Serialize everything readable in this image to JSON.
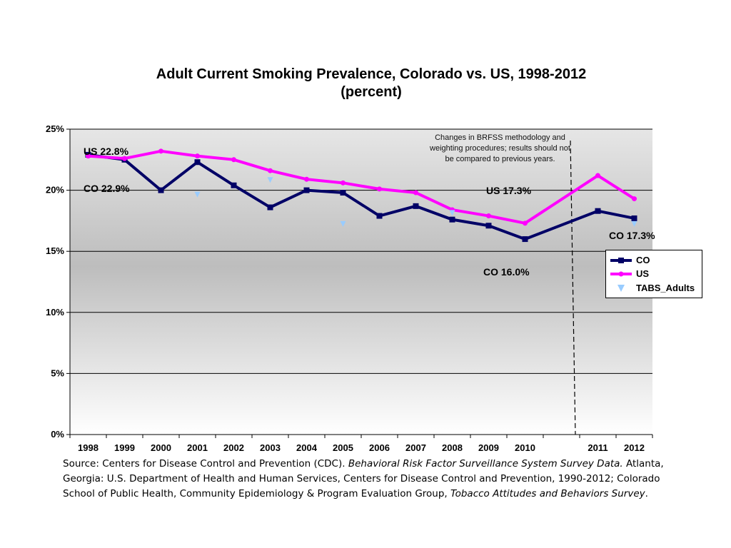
{
  "chart_data": {
    "type": "line",
    "title_line1": "Adult Current Smoking Prevalence, Colorado vs. US, 1998-2012",
    "title_line2": "(percent)",
    "categories": [
      "1998",
      "1999",
      "2000",
      "2001",
      "2002",
      "2003",
      "2004",
      "2005",
      "2006",
      "2007",
      "2008",
      "2009",
      "2010",
      "",
      "2011",
      "2012"
    ],
    "ylim": [
      0,
      25
    ],
    "yticks": [
      "0%",
      "5%",
      "10%",
      "15%",
      "20%",
      "25%"
    ],
    "grid": true,
    "legend_position": "right",
    "series": [
      {
        "name": "CO",
        "color": "#000066",
        "marker": "square",
        "values": [
          22.9,
          22.5,
          20.0,
          22.3,
          20.4,
          18.6,
          20.0,
          19.8,
          17.9,
          18.7,
          17.6,
          17.1,
          16.0,
          null,
          18.3,
          17.7
        ]
      },
      {
        "name": "US",
        "color": "#ff00ff",
        "marker": "star",
        "values": [
          22.8,
          22.6,
          23.2,
          22.8,
          22.5,
          21.6,
          20.9,
          20.6,
          20.1,
          19.8,
          18.4,
          17.9,
          17.3,
          null,
          21.2,
          19.3
        ]
      },
      {
        "name": "TABS_Adults",
        "color": "#99ccff",
        "marker": "triangle-down",
        "values": [
          null,
          null,
          null,
          19.7,
          null,
          20.9,
          null,
          17.3,
          null,
          null,
          18.2,
          null,
          null,
          null,
          null,
          17.3
        ]
      }
    ],
    "annotations": {
      "us_start": "US 22.8%",
      "co_start": "CO 22.9%",
      "us_2010": "US 17.3%",
      "co_2010": "CO 16.0%",
      "co_2012": "CO  17.3%",
      "methodology_note": "Changes in BRFSS methodology and weighting procedures; results should not be compared to previous years."
    }
  },
  "source": {
    "prefix": "Source:  Centers for Disease Control and Prevention (CDC). ",
    "italic1": "Behavioral Risk Factor Surveillance System Survey Data.",
    "middle": " Atlanta, Georgia: U.S. Department of Health and Human Services, Centers for Disease Control and Prevention, 1990-2012; Colorado School of Public Health, Community Epidemiology & Program Evaluation Group, ",
    "italic2": "Tobacco Attitudes and Behaviors Survey",
    "suffix": "."
  }
}
